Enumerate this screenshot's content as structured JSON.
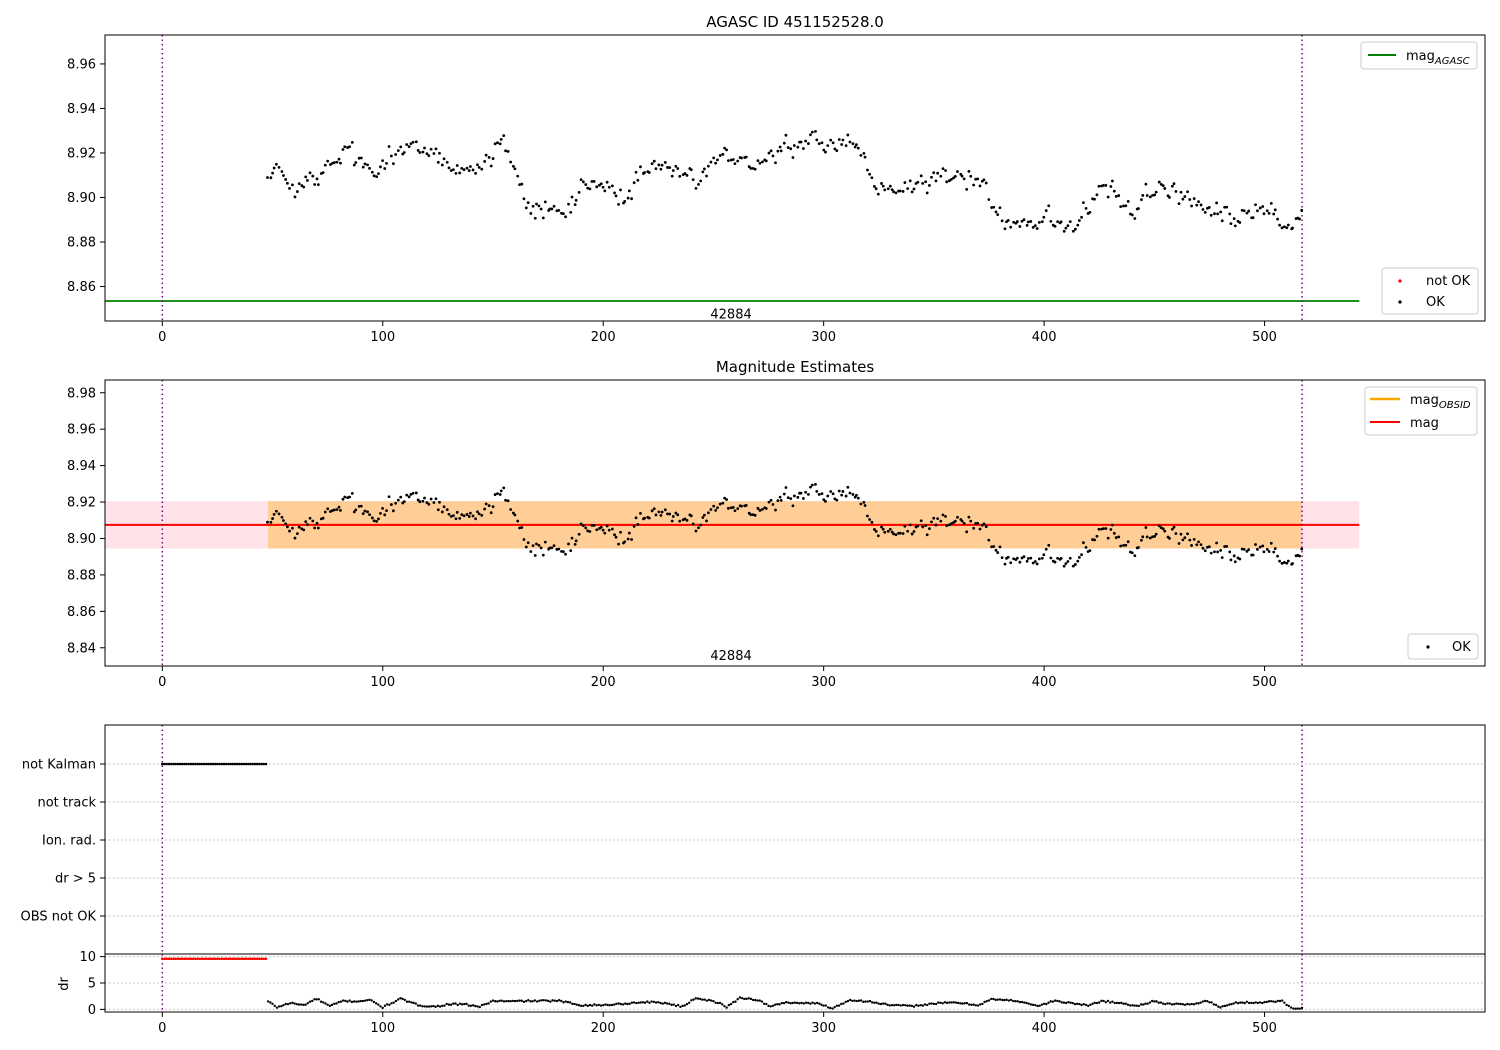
{
  "chart_data": [
    {
      "type": "scatter",
      "title": "AGASC ID 451152528.0",
      "xlabel": "",
      "ylabel": "",
      "xlim": [
        -26,
        600
      ],
      "ylim": [
        8.8445,
        8.973
      ],
      "x_ticks": [
        0,
        100,
        200,
        300,
        400,
        500
      ],
      "y_ticks": [
        8.86,
        8.88,
        8.9,
        8.92,
        8.94,
        8.96
      ],
      "vlines": [
        0,
        517
      ],
      "hlines": [
        {
          "name": "mag_AGASC",
          "y": 8.8535,
          "x_range": [
            -26,
            543
          ],
          "color": "#008000"
        }
      ],
      "annotations": [
        {
          "text": "42884",
          "x": 258,
          "y": 8.8475
        }
      ],
      "series": [
        {
          "name": "not OK",
          "color": "#ff0000",
          "values": []
        },
        {
          "name": "OK",
          "color": "#000000",
          "x_start": 48,
          "x_end": 517,
          "anchors": [
            [
              48,
              8.912
            ],
            [
              60,
              8.906
            ],
            [
              72,
              8.91
            ],
            [
              84,
              8.92
            ],
            [
              96,
              8.912
            ],
            [
              108,
              8.924
            ],
            [
              120,
              8.92
            ],
            [
              132,
              8.913
            ],
            [
              144,
              8.914
            ],
            [
              154,
              8.926
            ],
            [
              162,
              8.904
            ],
            [
              170,
              8.895
            ],
            [
              180,
              8.89
            ],
            [
              190,
              8.904
            ],
            [
              200,
              8.904
            ],
            [
              210,
              8.898
            ],
            [
              220,
              8.914
            ],
            [
              232,
              8.908
            ],
            [
              244,
              8.908
            ],
            [
              256,
              8.918
            ],
            [
              268,
              8.914
            ],
            [
              280,
              8.922
            ],
            [
              292,
              8.926
            ],
            [
              304,
              8.926
            ],
            [
              314,
              8.92
            ],
            [
              324,
              8.908
            ],
            [
              336,
              8.902
            ],
            [
              348,
              8.908
            ],
            [
              360,
              8.91
            ],
            [
              372,
              8.908
            ],
            [
              382,
              8.888
            ],
            [
              392,
              8.89
            ],
            [
              404,
              8.892
            ],
            [
              416,
              8.892
            ],
            [
              428,
              8.905
            ],
            [
              440,
              8.892
            ],
            [
              452,
              8.905
            ],
            [
              464,
              8.902
            ],
            [
              476,
              8.893
            ],
            [
              488,
              8.892
            ],
            [
              500,
              8.896
            ],
            [
              510,
              8.888
            ],
            [
              517,
              8.888
            ]
          ],
          "noise": 0.0075
        }
      ],
      "legend": [
        "mag_AGASC",
        "not OK",
        "OK"
      ],
      "legend_placement": [
        "top-right",
        "bottom-right"
      ]
    },
    {
      "type": "scatter",
      "title": "Magnitude Estimates",
      "xlabel": "",
      "ylabel": "",
      "xlim": [
        -26,
        600
      ],
      "ylim": [
        8.83,
        8.987
      ],
      "x_ticks": [
        0,
        100,
        200,
        300,
        400,
        500
      ],
      "y_ticks": [
        8.84,
        8.86,
        8.88,
        8.9,
        8.92,
        8.94,
        8.96,
        8.98
      ],
      "vlines": [
        0,
        517
      ],
      "hlines": [
        {
          "name": "mag_OBSID",
          "y": 8.9075,
          "x_range": [
            48,
            517
          ],
          "color": "#ffa500"
        },
        {
          "name": "mag",
          "y": 8.9075,
          "x_range": [
            -26,
            543
          ],
          "color": "#ff0000"
        }
      ],
      "bands": [
        {
          "y_range": [
            8.8945,
            8.9205
          ],
          "x_range": [
            -26,
            543
          ],
          "color": "#ffc0cb"
        },
        {
          "y_range": [
            8.8945,
            8.9205
          ],
          "x_range": [
            48,
            517
          ],
          "color": "#ffa500"
        }
      ],
      "annotations": [
        {
          "text": "42884",
          "x": 258,
          "y": 8.8355
        }
      ],
      "series": [
        {
          "name": "OK",
          "color": "#000000",
          "same_as_panel": 0
        }
      ],
      "legend": [
        "mag_OBSID",
        "mag",
        "OK"
      ],
      "legend_placement": [
        "top-right",
        "bottom-right"
      ]
    },
    {
      "type": "scatter",
      "title": "",
      "xlabel": "",
      "ylabel": "",
      "xlim": [
        -26,
        600
      ],
      "categories": [
        "OBS not OK",
        "dr > 5",
        "Ion. rad.",
        "not track",
        "not Kalman"
      ],
      "vlines": [
        0,
        517
      ],
      "series": [
        {
          "name": "not Kalman",
          "color": "#000000",
          "x_range": [
            0,
            47
          ]
        }
      ],
      "grid": true
    },
    {
      "type": "scatter",
      "title": "",
      "xlabel": "",
      "ylabel": "dr",
      "xlim": [
        -26,
        600
      ],
      "ylim": [
        -0.5,
        10.5
      ],
      "x_ticks": [
        0,
        100,
        200,
        300,
        400,
        500
      ],
      "y_ticks": [
        0,
        5,
        10
      ],
      "vlines": [
        0,
        517
      ],
      "series": [
        {
          "name": "dr",
          "color": "#000000",
          "x_start": 48,
          "x_end": 517,
          "anchors": [
            [
              48,
              1.5
            ],
            [
              52,
              0.4
            ],
            [
              58,
              1.2
            ],
            [
              64,
              0.8
            ],
            [
              70,
              2.0
            ],
            [
              76,
              0.6
            ],
            [
              82,
              1.6
            ],
            [
              88,
              1.5
            ],
            [
              94,
              1.8
            ],
            [
              100,
              0.4
            ],
            [
              108,
              2.0
            ],
            [
              116,
              0.8
            ],
            [
              124,
              0.5
            ],
            [
              130,
              1.0
            ],
            [
              138,
              0.9
            ],
            [
              144,
              0.5
            ],
            [
              150,
              1.6
            ],
            [
              158,
              1.5
            ],
            [
              166,
              1.6
            ],
            [
              180,
              1.6
            ],
            [
              190,
              0.8
            ],
            [
              200,
              0.8
            ],
            [
              210,
              1.1
            ],
            [
              220,
              1.4
            ],
            [
              228,
              1.2
            ],
            [
              236,
              0.5
            ],
            [
              242,
              2.2
            ],
            [
              252,
              1.3
            ],
            [
              256,
              0.4
            ],
            [
              262,
              2.2
            ],
            [
              270,
              1.8
            ],
            [
              276,
              0.5
            ],
            [
              282,
              1.3
            ],
            [
              290,
              1.2
            ],
            [
              298,
              1.1
            ],
            [
              304,
              0.2
            ],
            [
              312,
              1.8
            ],
            [
              322,
              1.4
            ],
            [
              330,
              0.8
            ],
            [
              340,
              0.6
            ],
            [
              350,
              1.1
            ],
            [
              360,
              1.3
            ],
            [
              370,
              0.8
            ],
            [
              376,
              1.9
            ],
            [
              388,
              1.6
            ],
            [
              398,
              0.6
            ],
            [
              404,
              1.6
            ],
            [
              414,
              1.1
            ],
            [
              420,
              0.7
            ],
            [
              426,
              1.6
            ],
            [
              436,
              1.1
            ],
            [
              442,
              0.6
            ],
            [
              450,
              1.6
            ],
            [
              456,
              1.0
            ],
            [
              466,
              0.9
            ],
            [
              474,
              1.6
            ],
            [
              480,
              0.4
            ],
            [
              488,
              1.3
            ],
            [
              498,
              1.3
            ],
            [
              508,
              1.6
            ],
            [
              512,
              0.3
            ],
            [
              517,
              0.2
            ]
          ],
          "noise": 0.15
        },
        {
          "name": "dr (flag)",
          "color": "#ff0000",
          "x_range": [
            0,
            47
          ],
          "y": 9.6
        }
      ]
    }
  ]
}
